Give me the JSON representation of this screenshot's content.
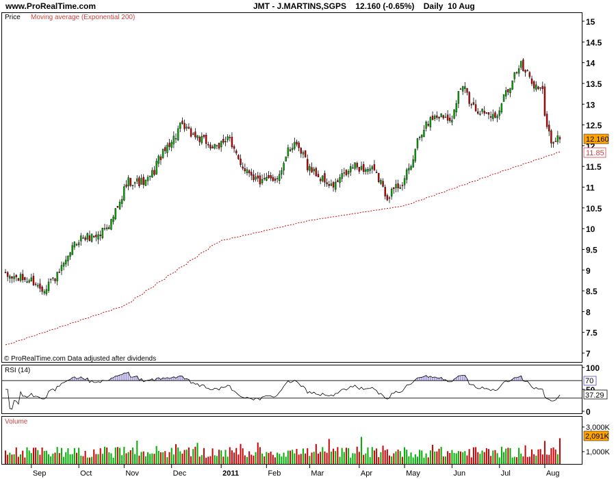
{
  "header": {
    "site": "www.ProRealTime.com",
    "instrument": "JMT - J.MARTINS,SGPS",
    "last": "12.160 (-0.65%)",
    "period": "Daily",
    "date": "10 Aug"
  },
  "price_panel": {
    "label": "Price",
    "ma_label": "Moving average (Exponential 200)",
    "footer": "© ProRealTime.com  Data adjusted after dividends",
    "last_tag": "12.160",
    "ma_tag": "11.85"
  },
  "rsi_panel": {
    "label": "RSI (14)",
    "upper_level": "70",
    "last_tag": "37.29"
  },
  "volume_panel": {
    "label": "Volume",
    "last_tag": "2,091K"
  },
  "colors": {
    "up": "#00b000",
    "down": "#cc0000",
    "ma": "#cc0000",
    "tag_bg": "#ffa500",
    "rsi_fill": "#9a8fd8"
  },
  "chart_data": [
    {
      "type": "candlestick",
      "title": "JMT - J.MARTINS,SGPS",
      "ylim": [
        7,
        15
      ],
      "yticks": [
        15,
        14.5,
        14,
        13.5,
        13,
        12.5,
        12,
        11.5,
        11,
        10.5,
        10,
        9.5,
        9,
        8.5,
        8,
        7.5,
        7
      ],
      "x_ticks": [
        "Sep",
        "Oct",
        "Nov",
        "Dec",
        "2011",
        "Feb",
        "Mar",
        "Apr",
        "May",
        "Jun",
        "Jul",
        "Aug"
      ],
      "close_anchors": [
        [
          "2010-08-16",
          8.85
        ],
        [
          "2010-09-01",
          8.75
        ],
        [
          "2010-09-08",
          8.55
        ],
        [
          "2010-09-20",
          8.95
        ],
        [
          "2010-10-01",
          9.75
        ],
        [
          "2010-10-15",
          9.85
        ],
        [
          "2010-10-25",
          10.3
        ],
        [
          "2010-11-03",
          11.15
        ],
        [
          "2010-11-15",
          11.1
        ],
        [
          "2010-11-24",
          11.75
        ],
        [
          "2010-12-07",
          12.45
        ],
        [
          "2010-12-20",
          12.15
        ],
        [
          "2010-12-31",
          11.9
        ],
        [
          "2011-01-06",
          12.25
        ],
        [
          "2011-01-14",
          11.6
        ],
        [
          "2011-01-28",
          11.1
        ],
        [
          "2011-02-08",
          11.25
        ],
        [
          "2011-02-18",
          12.1
        ],
        [
          "2011-03-02",
          11.4
        ],
        [
          "2011-03-15",
          11.0
        ],
        [
          "2011-03-29",
          11.5
        ],
        [
          "2011-04-11",
          11.4
        ],
        [
          "2011-04-20",
          10.8
        ],
        [
          "2011-05-02",
          11.2
        ],
        [
          "2011-05-11",
          12.2
        ],
        [
          "2011-05-20",
          12.75
        ],
        [
          "2011-06-01",
          12.7
        ],
        [
          "2011-06-08",
          13.45
        ],
        [
          "2011-06-16",
          12.9
        ],
        [
          "2011-06-29",
          12.7
        ],
        [
          "2011-07-08",
          13.45
        ],
        [
          "2011-07-15",
          13.95
        ],
        [
          "2011-07-22",
          13.6
        ],
        [
          "2011-07-29",
          13.3
        ],
        [
          "2011-08-04",
          12.1
        ],
        [
          "2011-08-10",
          12.16
        ]
      ],
      "ma_anchors": [
        [
          "2010-08-16",
          7.2
        ],
        [
          "2010-11-01",
          8.15
        ],
        [
          "2011-01-01",
          9.7
        ],
        [
          "2011-03-01",
          10.2
        ],
        [
          "2011-05-01",
          10.55
        ],
        [
          "2011-07-01",
          11.35
        ],
        [
          "2011-08-10",
          11.85
        ]
      ],
      "last": 12.16,
      "ma_last": 11.85
    },
    {
      "type": "line",
      "title": "RSI (14)",
      "ylim": [
        0,
        100
      ],
      "yticks": [
        100,
        50,
        0
      ],
      "levels": [
        70,
        30
      ],
      "last": 37.29
    },
    {
      "type": "bar",
      "title": "Volume",
      "yticks": [
        "3,000K",
        "1,000K"
      ],
      "y_values": [
        3000,
        1000
      ],
      "unit": "K",
      "last": 2091
    }
  ]
}
